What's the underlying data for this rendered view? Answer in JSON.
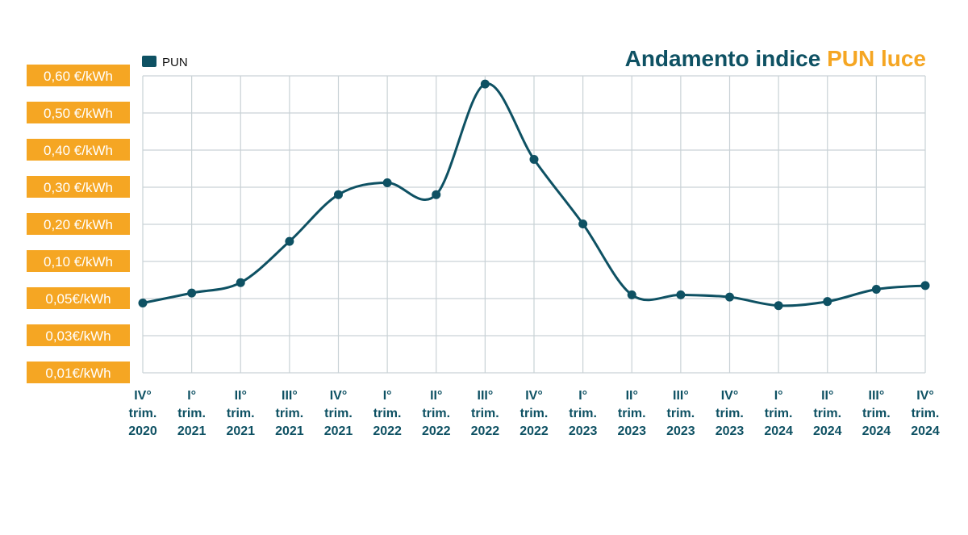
{
  "colors": {
    "series": "#0e5163",
    "accent": "#f5a623",
    "grid": "#c9d2d6",
    "title_dark": "#0e5163"
  },
  "chart_data": {
    "type": "line",
    "title_part1": "Andamento indice ",
    "title_part2": "PUN luce",
    "legend": [
      "PUN"
    ],
    "y_tick_labels": [
      "0,60 €/kWh",
      "0,50 €/kWh",
      "0,40 €/kWh",
      "0,30 €/kWh",
      "0,20 €/kWh",
      "0,10 €/kWh",
      "0,05€/kWh",
      "0,03€/kWh",
      "0,01€/kWh"
    ],
    "y_axis_note": "categorical (non-linear) scale; levels indexed 0 (top, 0,60) to 8 (bottom, 0,01)",
    "categories": [
      [
        "IV°",
        "trim.",
        "2020"
      ],
      [
        "I°",
        "trim.",
        "2021"
      ],
      [
        "II°",
        "trim.",
        "2021"
      ],
      [
        "III°",
        "trim.",
        "2021"
      ],
      [
        "IV°",
        "trim.",
        "2021"
      ],
      [
        "I°",
        "trim.",
        "2022"
      ],
      [
        "II°",
        "trim.",
        "2022"
      ],
      [
        "III°",
        "trim.",
        "2022"
      ],
      [
        "IV°",
        "trim.",
        "2022"
      ],
      [
        "I°",
        "trim.",
        "2023"
      ],
      [
        "II°",
        "trim.",
        "2023"
      ],
      [
        "III°",
        "trim.",
        "2023"
      ],
      [
        "IV°",
        "trim.",
        "2023"
      ],
      [
        "I°",
        "trim.",
        "2024"
      ],
      [
        "II°",
        "trim.",
        "2024"
      ],
      [
        "III°",
        "trim.",
        "2024"
      ],
      [
        "IV°",
        "trim.",
        "2024"
      ]
    ],
    "series": [
      {
        "name": "PUN",
        "level_positions": [
          6.12,
          5.85,
          5.57,
          4.46,
          3.2,
          2.88,
          3.2,
          0.22,
          2.25,
          3.99,
          5.9,
          5.9,
          5.96,
          6.19,
          6.08,
          5.75,
          5.65
        ]
      }
    ]
  }
}
